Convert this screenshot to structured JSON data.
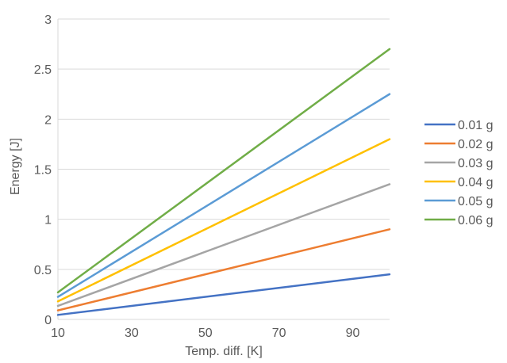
{
  "chart_data": {
    "type": "line",
    "title": "",
    "xlabel": "Temp. diff. [K]",
    "ylabel": "Energy [J]",
    "xlim": [
      10,
      100
    ],
    "ylim": [
      0,
      3
    ],
    "x_ticks": [
      10,
      30,
      50,
      70,
      90
    ],
    "y_ticks": [
      "0",
      "0.5",
      "1",
      "1.5",
      "2",
      "2.5",
      "3"
    ],
    "y_tick_values": [
      0,
      0.5,
      1,
      1.5,
      2,
      2.5,
      3
    ],
    "grid": "horizontal",
    "legend_position": "right",
    "x": [
      10,
      100
    ],
    "series": [
      {
        "name": "0.01 g",
        "color": "#4472C4",
        "values": [
          0.045,
          0.45
        ]
      },
      {
        "name": "0.02 g",
        "color": "#ED7D31",
        "values": [
          0.09,
          0.9
        ]
      },
      {
        "name": "0.03 g",
        "color": "#A5A5A5",
        "values": [
          0.135,
          1.35
        ]
      },
      {
        "name": "0.04 g",
        "color": "#FFC000",
        "values": [
          0.18,
          1.8
        ]
      },
      {
        "name": "0.05 g",
        "color": "#5B9BD5",
        "values": [
          0.225,
          2.25
        ]
      },
      {
        "name": "0.06 g",
        "color": "#70AD47",
        "values": [
          0.27,
          2.7
        ]
      }
    ]
  }
}
